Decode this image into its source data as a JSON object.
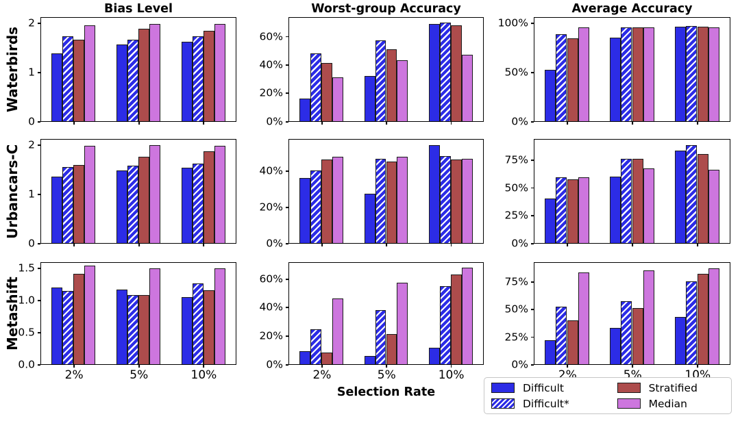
{
  "figure": {
    "row_labels": [
      "Waterbirds",
      "Urbancars-C",
      "Metashift"
    ],
    "col_titles": [
      "Bias Level",
      "Worst-group Accuracy",
      "Average Accuracy"
    ],
    "xlabel": "Selection Rate",
    "categories": [
      "2%",
      "5%",
      "10%"
    ]
  },
  "legend": {
    "items": [
      {
        "label": "Difficult",
        "color": "#2c2ce6",
        "hatch": false
      },
      {
        "label": "Difficult*",
        "color": "#2c2ce6",
        "hatch": true
      },
      {
        "label": "Stratified",
        "color": "#ad4c4c",
        "hatch": false
      },
      {
        "label": "Median",
        "color": "#cd76de",
        "hatch": false
      }
    ],
    "edge_color": "#1a1a1a"
  },
  "chart_data": [
    {
      "type": "bar",
      "row": "Waterbirds",
      "col": "Bias Level",
      "categories": [
        "2%",
        "5%",
        "10%"
      ],
      "ylim": [
        0,
        2.1
      ],
      "show_xtick_labels": false,
      "yticks": [
        {
          "value": 0,
          "label": "0"
        },
        {
          "value": 1,
          "label": "1"
        },
        {
          "value": 2,
          "label": "2"
        }
      ],
      "series": [
        {
          "name": "Difficult",
          "values": [
            1.38,
            1.56,
            1.62
          ]
        },
        {
          "name": "Difficult*",
          "values": [
            1.72,
            1.66,
            1.72
          ]
        },
        {
          "name": "Stratified",
          "values": [
            1.65,
            1.88,
            1.84
          ]
        },
        {
          "name": "Median",
          "values": [
            1.95,
            1.97,
            1.97
          ]
        }
      ]
    },
    {
      "type": "bar",
      "row": "Waterbirds",
      "col": "Worst-group Accuracy",
      "categories": [
        "2%",
        "5%",
        "10%"
      ],
      "ylim": [
        0,
        73
      ],
      "show_xtick_labels": false,
      "yticks": [
        {
          "value": 0,
          "label": "0%"
        },
        {
          "value": 20,
          "label": "20%"
        },
        {
          "value": 40,
          "label": "40%"
        },
        {
          "value": 60,
          "label": "60%"
        }
      ],
      "series": [
        {
          "name": "Difficult",
          "values": [
            16,
            32,
            68.5
          ]
        },
        {
          "name": "Difficult*",
          "values": [
            48,
            57,
            69.5
          ]
        },
        {
          "name": "Stratified",
          "values": [
            41,
            51,
            67.5
          ]
        },
        {
          "name": "Median",
          "values": [
            31,
            43,
            47
          ]
        }
      ]
    },
    {
      "type": "bar",
      "row": "Waterbirds",
      "col": "Average Accuracy",
      "categories": [
        "2%",
        "5%",
        "10%"
      ],
      "ylim": [
        0,
        105
      ],
      "show_xtick_labels": false,
      "yticks": [
        {
          "value": 0,
          "label": "0%"
        },
        {
          "value": 50,
          "label": "50%"
        },
        {
          "value": 100,
          "label": "100%"
        }
      ],
      "series": [
        {
          "name": "Difficult",
          "values": [
            52,
            85,
            96
          ]
        },
        {
          "name": "Difficult*",
          "values": [
            88,
            95,
            96.5
          ]
        },
        {
          "name": "Stratified",
          "values": [
            84,
            95.5,
            96
          ]
        },
        {
          "name": "Median",
          "values": [
            95,
            95,
            95.5
          ]
        }
      ]
    },
    {
      "type": "bar",
      "row": "Urbancars-C",
      "col": "Bias Level",
      "categories": [
        "2%",
        "5%",
        "10%"
      ],
      "ylim": [
        0,
        2.1
      ],
      "show_xtick_labels": false,
      "yticks": [
        {
          "value": 0,
          "label": "0"
        },
        {
          "value": 1,
          "label": "1"
        },
        {
          "value": 2,
          "label": "2"
        }
      ],
      "series": [
        {
          "name": "Difficult",
          "values": [
            1.35,
            1.48,
            1.53
          ]
        },
        {
          "name": "Difficult*",
          "values": [
            1.55,
            1.57,
            1.62
          ]
        },
        {
          "name": "Stratified",
          "values": [
            1.58,
            1.75,
            1.87
          ]
        },
        {
          "name": "Median",
          "values": [
            1.97,
            1.99,
            1.98
          ]
        }
      ]
    },
    {
      "type": "bar",
      "row": "Urbancars-C",
      "col": "Worst-group Accuracy",
      "categories": [
        "2%",
        "5%",
        "10%"
      ],
      "ylim": [
        0,
        57
      ],
      "show_xtick_labels": false,
      "yticks": [
        {
          "value": 0,
          "label": "0%"
        },
        {
          "value": 20,
          "label": "20%"
        },
        {
          "value": 40,
          "label": "40%"
        }
      ],
      "series": [
        {
          "name": "Difficult",
          "values": [
            36,
            27,
            54
          ]
        },
        {
          "name": "Difficult*",
          "values": [
            40,
            46.5,
            48
          ]
        },
        {
          "name": "Stratified",
          "values": [
            46,
            45,
            46
          ]
        },
        {
          "name": "Median",
          "values": [
            47.5,
            47.5,
            46.5
          ]
        }
      ]
    },
    {
      "type": "bar",
      "row": "Urbancars-C",
      "col": "Average Accuracy",
      "categories": [
        "2%",
        "5%",
        "10%"
      ],
      "ylim": [
        0,
        93
      ],
      "show_xtick_labels": false,
      "yticks": [
        {
          "value": 0,
          "label": "0%"
        },
        {
          "value": 25,
          "label": "25%"
        },
        {
          "value": 50,
          "label": "50%"
        },
        {
          "value": 75,
          "label": "75%"
        }
      ],
      "series": [
        {
          "name": "Difficult",
          "values": [
            40,
            60,
            83
          ]
        },
        {
          "name": "Difficult*",
          "values": [
            59,
            76,
            88
          ]
        },
        {
          "name": "Stratified",
          "values": [
            57,
            76,
            80
          ]
        },
        {
          "name": "Median",
          "values": [
            59,
            67,
            66
          ]
        }
      ]
    },
    {
      "type": "bar",
      "row": "Metashift",
      "col": "Bias Level",
      "categories": [
        "2%",
        "5%",
        "10%"
      ],
      "ylim": [
        0,
        1.58
      ],
      "show_xtick_labels": true,
      "yticks": [
        {
          "value": 0,
          "label": "0.0"
        },
        {
          "value": 0.5,
          "label": "0.5"
        },
        {
          "value": 1.0,
          "label": "1.0"
        },
        {
          "value": 1.5,
          "label": "1.5"
        }
      ],
      "series": [
        {
          "name": "Difficult",
          "values": [
            1.2,
            1.16,
            1.05
          ]
        },
        {
          "name": "Difficult*",
          "values": [
            1.14,
            1.08,
            1.26
          ]
        },
        {
          "name": "Stratified",
          "values": [
            1.41,
            1.08,
            1.15
          ]
        },
        {
          "name": "Median",
          "values": [
            1.54,
            1.49,
            1.5
          ]
        }
      ]
    },
    {
      "type": "bar",
      "row": "Metashift",
      "col": "Worst-group Accuracy",
      "categories": [
        "2%",
        "5%",
        "10%"
      ],
      "ylim": [
        0,
        71
      ],
      "show_xtick_labels": true,
      "yticks": [
        {
          "value": 0,
          "label": "0%"
        },
        {
          "value": 20,
          "label": "20%"
        },
        {
          "value": 40,
          "label": "40%"
        },
        {
          "value": 60,
          "label": "60%"
        }
      ],
      "series": [
        {
          "name": "Difficult",
          "values": [
            9,
            6,
            11.5
          ]
        },
        {
          "name": "Difficult*",
          "values": [
            24.5,
            38,
            54.5
          ]
        },
        {
          "name": "Stratified",
          "values": [
            8,
            21,
            63
          ]
        },
        {
          "name": "Median",
          "values": [
            46,
            57,
            67.5
          ]
        }
      ]
    },
    {
      "type": "bar",
      "row": "Metashift",
      "col": "Average Accuracy",
      "categories": [
        "2%",
        "5%",
        "10%"
      ],
      "ylim": [
        0,
        92
      ],
      "show_xtick_labels": true,
      "yticks": [
        {
          "value": 0,
          "label": "0%"
        },
        {
          "value": 25,
          "label": "25%"
        },
        {
          "value": 50,
          "label": "50%"
        },
        {
          "value": 75,
          "label": "75%"
        }
      ],
      "series": [
        {
          "name": "Difficult",
          "values": [
            21.5,
            33,
            43
          ]
        },
        {
          "name": "Difficult*",
          "values": [
            52.5,
            57.5,
            75
          ]
        },
        {
          "name": "Stratified",
          "values": [
            40,
            51,
            82
          ]
        },
        {
          "name": "Median",
          "values": [
            83.5,
            85,
            87
          ]
        }
      ]
    }
  ]
}
